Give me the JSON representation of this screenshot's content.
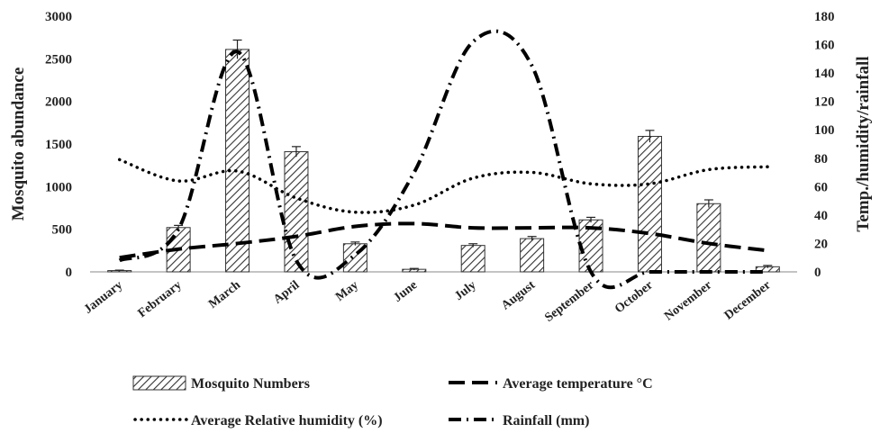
{
  "chart_data": {
    "type": "bar",
    "categories": [
      "January",
      "February",
      "March",
      "April",
      "May",
      "June",
      "July",
      "August",
      "September",
      "October",
      "November",
      "December"
    ],
    "ylabel": "Mosquito abundance",
    "ylabel_right": "Temp./humidity/rainfall",
    "ylim": [
      0,
      3000
    ],
    "y_ticks": [
      "0",
      "500",
      "1000",
      "1500",
      "2000",
      "2500",
      "3000"
    ],
    "ylim_right": [
      0,
      180
    ],
    "y_ticks_right": [
      "0",
      "20",
      "40",
      "60",
      "80",
      "100",
      "120",
      "140",
      "160",
      "180"
    ],
    "grid": false,
    "legend_position": "bottom",
    "series": [
      {
        "name": "Mosquito Numbers",
        "kind": "bar",
        "axis": "left",
        "values": [
          15,
          520,
          2610,
          1410,
          330,
          30,
          310,
          390,
          610,
          1590,
          800,
          60
        ],
        "error": [
          5,
          25,
          110,
          60,
          20,
          10,
          20,
          25,
          30,
          70,
          45,
          15
        ]
      },
      {
        "name": "Average temperature °C",
        "kind": "line",
        "axis": "right",
        "style": "dash",
        "values": [
          10,
          16,
          20,
          25,
          32,
          34,
          31,
          31,
          31,
          27,
          20,
          15
        ]
      },
      {
        "name": "Average Relative humidity (%)",
        "kind": "line",
        "axis": "right",
        "style": "dot",
        "values": [
          79,
          64,
          71,
          52,
          42,
          47,
          66,
          70,
          62,
          62,
          72,
          74
        ]
      },
      {
        "name": "Rainfall (mm)",
        "kind": "line",
        "axis": "right",
        "style": "dashdot",
        "values": [
          8,
          30,
          155,
          8,
          12,
          70,
          162,
          145,
          0,
          0,
          0,
          0
        ]
      }
    ]
  }
}
